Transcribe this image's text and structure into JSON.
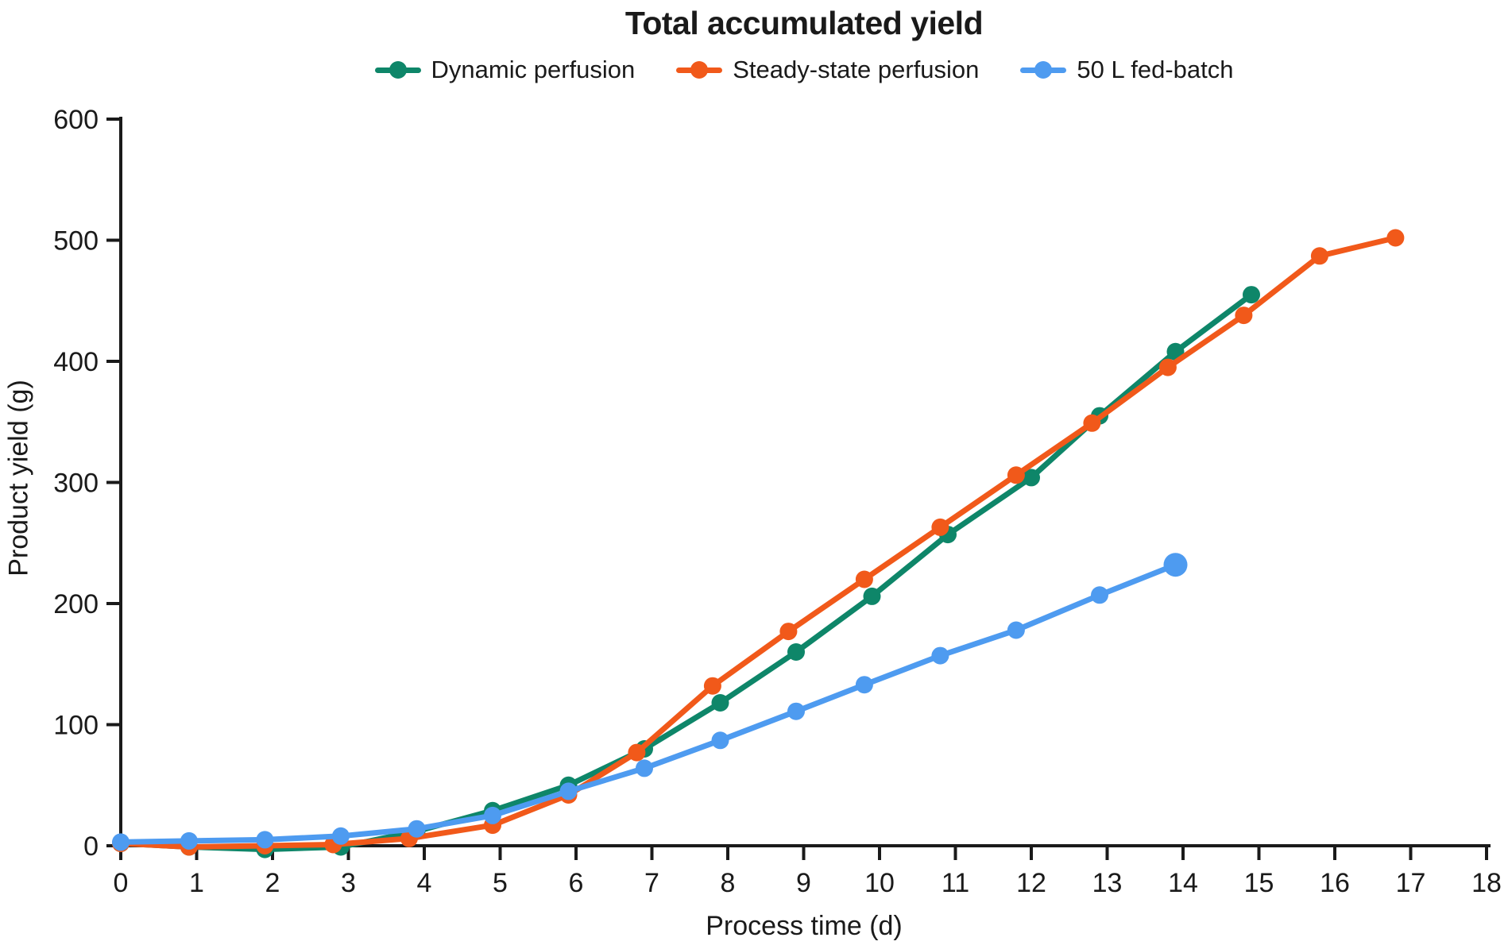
{
  "chart_data": {
    "type": "line",
    "title": "Total accumulated yield",
    "xlabel": "Process time (d)",
    "ylabel": "Product yield (g)",
    "xlim": [
      0,
      18
    ],
    "ylim": [
      0,
      600
    ],
    "x_ticks": [
      0,
      1,
      2,
      3,
      4,
      5,
      6,
      7,
      8,
      9,
      10,
      11,
      12,
      13,
      14,
      15,
      16,
      17,
      18
    ],
    "y_ticks": [
      0,
      100,
      200,
      300,
      400,
      500,
      600
    ],
    "grid": false,
    "legend_position": "top-center",
    "axis_color": "#1a1a1a",
    "series": [
      {
        "name": "Dynamic perfusion",
        "color": "#0E8669",
        "points": [
          [
            0,
            2
          ],
          [
            0.9,
            -1
          ],
          [
            1.9,
            -3
          ],
          [
            2.9,
            -1
          ],
          [
            3.9,
            12
          ],
          [
            4.9,
            29
          ],
          [
            5.9,
            50
          ],
          [
            6.9,
            80
          ],
          [
            7.9,
            118
          ],
          [
            8.9,
            160
          ],
          [
            9.9,
            206
          ],
          [
            10.9,
            257
          ],
          [
            12.0,
            304
          ],
          [
            12.9,
            355
          ],
          [
            13.9,
            408
          ],
          [
            14.9,
            455
          ]
        ],
        "last_point_emphasis": false
      },
      {
        "name": "Steady-state perfusion",
        "color": "#F1591A",
        "points": [
          [
            0,
            2
          ],
          [
            0.9,
            -1
          ],
          [
            1.9,
            0
          ],
          [
            2.8,
            1
          ],
          [
            3.8,
            6
          ],
          [
            4.9,
            17
          ],
          [
            5.9,
            42
          ],
          [
            6.8,
            77
          ],
          [
            7.8,
            132
          ],
          [
            8.8,
            177
          ],
          [
            9.8,
            220
          ],
          [
            10.8,
            263
          ],
          [
            11.8,
            306
          ],
          [
            12.8,
            349
          ],
          [
            13.8,
            395
          ],
          [
            14.8,
            438
          ],
          [
            15.8,
            487
          ],
          [
            16.8,
            502
          ]
        ],
        "last_point_emphasis": false
      },
      {
        "name": "50 L fed-batch",
        "color": "#4E9BF0",
        "points": [
          [
            0,
            3
          ],
          [
            0.9,
            4
          ],
          [
            1.9,
            5
          ],
          [
            2.9,
            8
          ],
          [
            3.9,
            14
          ],
          [
            4.9,
            25
          ],
          [
            5.9,
            45
          ],
          [
            6.9,
            64
          ],
          [
            7.9,
            87
          ],
          [
            8.9,
            111
          ],
          [
            9.8,
            133
          ],
          [
            10.8,
            157
          ],
          [
            11.8,
            178
          ],
          [
            12.9,
            207
          ],
          [
            13.9,
            232
          ]
        ],
        "last_point_emphasis": true
      }
    ]
  }
}
